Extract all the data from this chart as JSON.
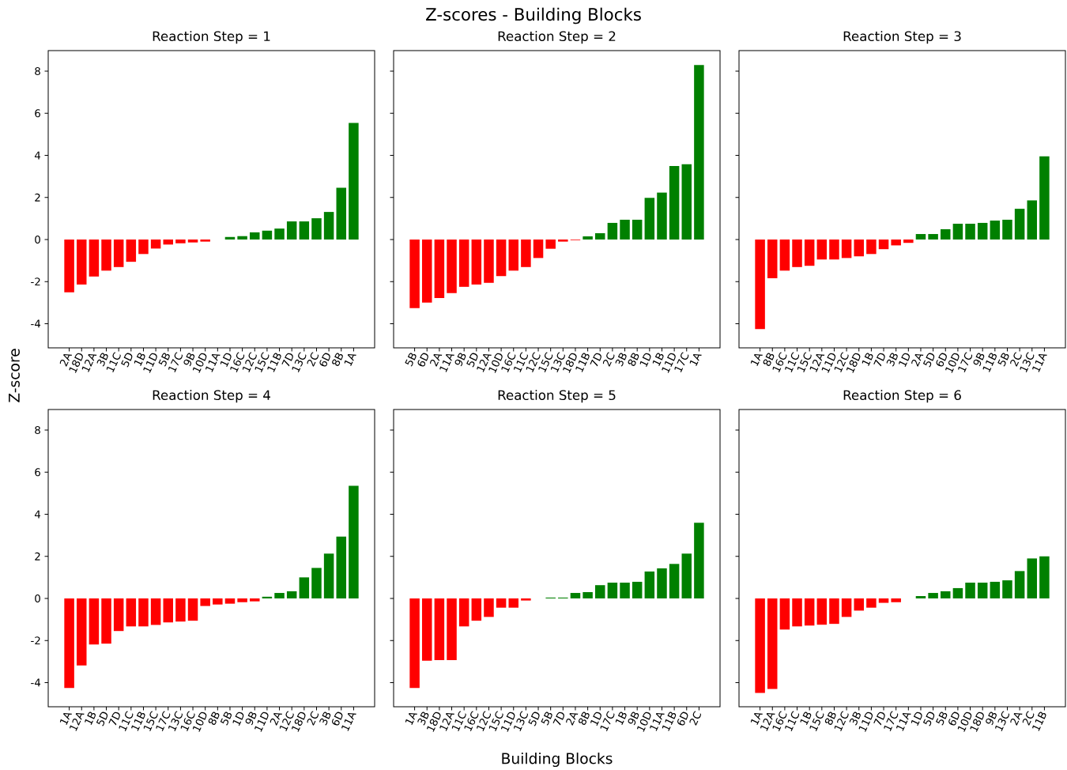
{
  "chart_data": [
    {
      "type": "bar",
      "title": "Reaction Step = 1",
      "ylabel": "Z-score",
      "annotations": [
        "Z-scores - Building Blocks"
      ],
      "categories": [
        "2A",
        "18D",
        "12A",
        "3B",
        "11C",
        "5D",
        "1B",
        "11D",
        "5B",
        "17C",
        "9B",
        "10D",
        "11A",
        "1D",
        "16C",
        "12C",
        "15C",
        "11B",
        "7D",
        "13C",
        "2C",
        "6D",
        "8B",
        "1A"
      ],
      "values": [
        -2.51,
        -2.14,
        -1.76,
        -1.48,
        -1.31,
        -1.06,
        -0.69,
        -0.43,
        -0.24,
        -0.18,
        -0.14,
        -0.1,
        0,
        0.12,
        0.16,
        0.34,
        0.42,
        0.52,
        0.86,
        0.86,
        1.01,
        1.31,
        2.46,
        5.54
      ],
      "colors": [
        "#ff0000",
        "#ff0000",
        "#ff0000",
        "#ff0000",
        "#ff0000",
        "#ff0000",
        "#ff0000",
        "#ff0000",
        "#ff0000",
        "#ff0000",
        "#ff0000",
        "#ff0000",
        "#ff0000",
        "#008000",
        "#008000",
        "#008000",
        "#008000",
        "#008000",
        "#008000",
        "#008000",
        "#008000",
        "#008000",
        "#008000",
        "#008000"
      ],
      "ylim": [
        -5.15,
        8.98
      ],
      "yticks": [
        -4,
        -2,
        0,
        2,
        4,
        6,
        8
      ]
    },
    {
      "type": "bar",
      "title": "Reaction Step = 2",
      "categories": [
        "5B",
        "6D",
        "2A",
        "11A",
        "9B",
        "5D",
        "12A",
        "10D",
        "16C",
        "11C",
        "12C",
        "15C",
        "13C",
        "18D",
        "11B",
        "7D",
        "2C",
        "3B",
        "8B",
        "1D",
        "1B",
        "11D",
        "17C",
        "1A"
      ],
      "values": [
        -3.26,
        -3.0,
        -2.78,
        -2.55,
        -2.25,
        -2.14,
        -2.06,
        -1.74,
        -1.48,
        -1.31,
        -0.88,
        -0.44,
        -0.1,
        -0.03,
        0.15,
        0.3,
        0.79,
        0.94,
        0.94,
        1.98,
        2.23,
        3.49,
        3.58,
        8.29
      ],
      "colors": [
        "#ff0000",
        "#ff0000",
        "#ff0000",
        "#ff0000",
        "#ff0000",
        "#ff0000",
        "#ff0000",
        "#ff0000",
        "#ff0000",
        "#ff0000",
        "#ff0000",
        "#ff0000",
        "#ff0000",
        "#ff0000",
        "#008000",
        "#008000",
        "#008000",
        "#008000",
        "#008000",
        "#008000",
        "#008000",
        "#008000",
        "#008000",
        "#008000"
      ],
      "ylim": [
        -5.15,
        8.98
      ],
      "yticks": [
        -4,
        -2,
        0,
        2,
        4,
        6,
        8
      ],
      "tick_labels": "x"
    },
    {
      "type": "bar",
      "title": "Reaction Step = 3",
      "categories": [
        "1A",
        "8B",
        "16C",
        "11C",
        "15C",
        "12A",
        "11D",
        "12C",
        "18D",
        "1B",
        "7D",
        "3B",
        "1D",
        "2A",
        "5D",
        "6D",
        "10D",
        "17C",
        "9B",
        "11B",
        "5B",
        "2C",
        "13C",
        "11A"
      ],
      "values": [
        -4.26,
        -1.84,
        -1.48,
        -1.31,
        -1.25,
        -0.95,
        -0.95,
        -0.88,
        -0.8,
        -0.69,
        -0.46,
        -0.28,
        -0.16,
        0.26,
        0.26,
        0.49,
        0.75,
        0.75,
        0.79,
        0.9,
        0.94,
        1.46,
        1.86,
        3.95
      ],
      "colors": [
        "#ff0000",
        "#ff0000",
        "#ff0000",
        "#ff0000",
        "#ff0000",
        "#ff0000",
        "#ff0000",
        "#ff0000",
        "#ff0000",
        "#ff0000",
        "#ff0000",
        "#ff0000",
        "#ff0000",
        "#008000",
        "#008000",
        "#008000",
        "#008000",
        "#008000",
        "#008000",
        "#008000",
        "#008000",
        "#008000",
        "#008000",
        "#008000"
      ],
      "ylim": [
        -5.15,
        8.98
      ],
      "yticks": [
        -4,
        -2,
        0,
        2,
        4,
        6,
        8
      ],
      "tick_labels": "x"
    },
    {
      "type": "bar",
      "title": "Reaction Step = 4",
      "categories": [
        "1A",
        "12A",
        "1B",
        "5D",
        "7D",
        "11C",
        "11B",
        "15C",
        "17C",
        "13C",
        "16C",
        "10D",
        "8B",
        "5B",
        "1D",
        "9B",
        "11D",
        "2A",
        "12C",
        "18D",
        "2C",
        "3B",
        "6D",
        "11A"
      ],
      "values": [
        -4.26,
        -3.19,
        -2.19,
        -2.15,
        -1.55,
        -1.33,
        -1.33,
        -1.26,
        -1.14,
        -1.1,
        -1.06,
        -0.36,
        -0.29,
        -0.25,
        -0.18,
        -0.14,
        0.08,
        0.26,
        0.34,
        1.0,
        1.45,
        2.13,
        2.94,
        5.35
      ],
      "colors": [
        "#ff0000",
        "#ff0000",
        "#ff0000",
        "#ff0000",
        "#ff0000",
        "#ff0000",
        "#ff0000",
        "#ff0000",
        "#ff0000",
        "#ff0000",
        "#ff0000",
        "#ff0000",
        "#ff0000",
        "#ff0000",
        "#ff0000",
        "#ff0000",
        "#008000",
        "#008000",
        "#008000",
        "#008000",
        "#008000",
        "#008000",
        "#008000",
        "#008000"
      ],
      "ylim": [
        -5.15,
        8.98
      ],
      "yticks": [
        -4,
        -2,
        0,
        2,
        4,
        6,
        8
      ]
    },
    {
      "type": "bar",
      "title": "Reaction Step = 5",
      "xlabel": "Building Blocks",
      "categories": [
        "1A",
        "3B",
        "18D",
        "12A",
        "11C",
        "16C",
        "12C",
        "15C",
        "11D",
        "13C",
        "5D",
        "5B",
        "7D",
        "2A",
        "8B",
        "1D",
        "17C",
        "1B",
        "9B",
        "10D",
        "11A",
        "11B",
        "6D",
        "2C"
      ],
      "values": [
        -4.26,
        -2.96,
        -2.93,
        -2.93,
        -1.33,
        -1.06,
        -0.88,
        -0.44,
        -0.44,
        -0.1,
        0,
        0.04,
        0.04,
        0.26,
        0.3,
        0.63,
        0.75,
        0.75,
        0.79,
        1.28,
        1.43,
        1.64,
        2.13,
        3.6
      ],
      "colors": [
        "#ff0000",
        "#ff0000",
        "#ff0000",
        "#ff0000",
        "#ff0000",
        "#ff0000",
        "#ff0000",
        "#ff0000",
        "#ff0000",
        "#ff0000",
        "#ff0000",
        "#008000",
        "#008000",
        "#008000",
        "#008000",
        "#008000",
        "#008000",
        "#008000",
        "#008000",
        "#008000",
        "#008000",
        "#008000",
        "#008000",
        "#008000"
      ],
      "ylim": [
        -5.15,
        8.98
      ],
      "yticks": [
        -4,
        -2,
        0,
        2,
        4,
        6,
        8
      ],
      "tick_labels": "x"
    },
    {
      "type": "bar",
      "title": "Reaction Step = 6",
      "categories": [
        "1A",
        "12A",
        "16C",
        "11C",
        "1B",
        "15C",
        "8B",
        "12C",
        "3B",
        "11D",
        "7D",
        "17C",
        "11A",
        "1D",
        "5D",
        "5B",
        "6D",
        "10D",
        "18D",
        "9B",
        "13C",
        "2A",
        "2C",
        "11B"
      ],
      "values": [
        -4.49,
        -4.3,
        -1.48,
        -1.33,
        -1.29,
        -1.25,
        -1.21,
        -0.88,
        -0.58,
        -0.44,
        -0.21,
        -0.18,
        0,
        0.11,
        0.26,
        0.34,
        0.49,
        0.75,
        0.75,
        0.79,
        0.86,
        1.3,
        1.9,
        2.0
      ],
      "colors": [
        "#ff0000",
        "#ff0000",
        "#ff0000",
        "#ff0000",
        "#ff0000",
        "#ff0000",
        "#ff0000",
        "#ff0000",
        "#ff0000",
        "#ff0000",
        "#ff0000",
        "#ff0000",
        "#ff0000",
        "#008000",
        "#008000",
        "#008000",
        "#008000",
        "#008000",
        "#008000",
        "#008000",
        "#008000",
        "#008000",
        "#008000",
        "#008000"
      ],
      "ylim": [
        -5.15,
        8.98
      ],
      "yticks": [
        -4,
        -2,
        0,
        2,
        4,
        6,
        8
      ],
      "tick_labels": "x"
    }
  ]
}
